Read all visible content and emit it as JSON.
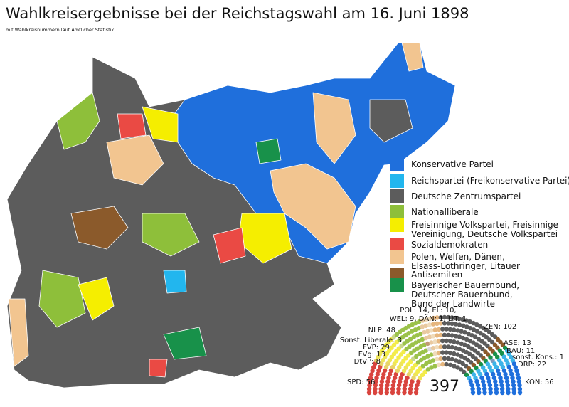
{
  "title": "Wahlkreisergebnisse bei der Reichstagswahl am 16. Juni 1898",
  "subtitle": "mit Wahlkreisnummern laut Amtlicher Statistik",
  "legend": [
    {
      "lines": [
        "Konservative Partei"
      ],
      "color": "#1f6fdc"
    },
    {
      "lines": [
        "Reichspartei (Freikonservative Partei)"
      ],
      "color": "#22b6ee"
    },
    {
      "lines": [
        "Deutsche Zentrumspartei"
      ],
      "color": "#5c5c5c"
    },
    {
      "lines": [
        "Nationalliberale"
      ],
      "color": "#8ebf3a"
    },
    {
      "lines": [
        "Freisinnige Volkspartei, Freisinnige",
        "Vereinigung, Deutsche Volkspartei"
      ],
      "color": "#f5ee00"
    },
    {
      "lines": [
        "Sozialdemokraten"
      ],
      "color": "#ea4a44"
    },
    {
      "lines": [
        "Polen, Welfen, Dänen,",
        "Elsass-Lothringer, Litauer"
      ],
      "color": "#f2c590"
    },
    {
      "lines": [
        "Antisemiten"
      ],
      "color": "#8b5a2b"
    },
    {
      "lines": [
        "Bayerischer Bauernbund,",
        "Deutscher Bauernbund,",
        "Bund der Landwirte"
      ],
      "color": "#18914a"
    }
  ],
  "parliament": {
    "total": "397",
    "labels": [
      "POL: 14, EL: 10,",
      "WEL: 9, DÄN: 1, LIT: 1",
      "NLP: 48",
      "ZEN: 102",
      "Sonst. Liberale: 3",
      "FVP: 29",
      "FVg: 13",
      "DtVP: 8",
      "ASE: 13",
      "BAU: 11",
      "sonst. Kons.: 1",
      "DRP: 22",
      "SPD: 56",
      "KON: 56"
    ],
    "groups": [
      {
        "seats": 56,
        "color": "#d9443e"
      },
      {
        "seats": 8,
        "color": "#e8d36a"
      },
      {
        "seats": 13,
        "color": "#eee45a"
      },
      {
        "seats": 29,
        "color": "#f3ec4a"
      },
      {
        "seats": 3,
        "color": "#c9d78a"
      },
      {
        "seats": 48,
        "color": "#9bc24a"
      },
      {
        "seats": 1,
        "color": "#d8d8d8"
      },
      {
        "seats": 1,
        "color": "#c09a73"
      },
      {
        "seats": 9,
        "color": "#e9c9a0"
      },
      {
        "seats": 10,
        "color": "#f0dcbc"
      },
      {
        "seats": 14,
        "color": "#e6b67e"
      },
      {
        "seats": 102,
        "color": "#5c5c5c"
      },
      {
        "seats": 13,
        "color": "#8b5a2b"
      },
      {
        "seats": 11,
        "color": "#18914a"
      },
      {
        "seats": 1,
        "color": "#7a9abf"
      },
      {
        "seats": 22,
        "color": "#3cb4e8"
      },
      {
        "seats": 56,
        "color": "#1f6fdc"
      }
    ]
  }
}
